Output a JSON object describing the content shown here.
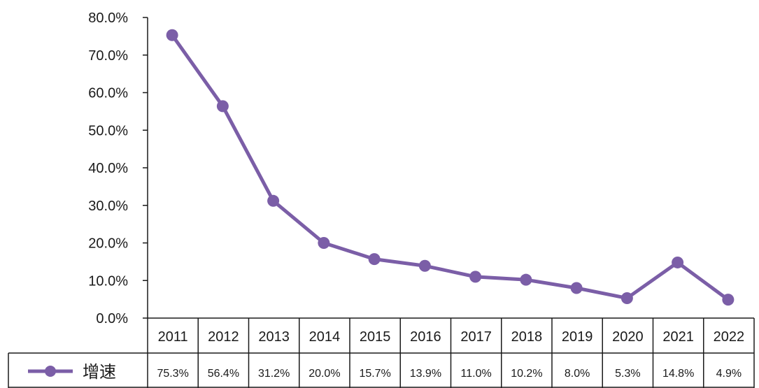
{
  "chart_data": {
    "type": "line",
    "title": "",
    "xlabel": "",
    "ylabel": "",
    "categories": [
      "2011",
      "2012",
      "2013",
      "2014",
      "2015",
      "2016",
      "2017",
      "2018",
      "2019",
      "2020",
      "2021",
      "2022"
    ],
    "series": [
      {
        "name": "增速",
        "values": [
          75.3,
          56.4,
          31.2,
          20.0,
          15.7,
          13.9,
          11.0,
          10.2,
          8.0,
          5.3,
          14.8,
          4.9
        ],
        "color": "#7B5EA7"
      }
    ],
    "value_labels": [
      "75.3%",
      "56.4%",
      "31.2%",
      "20.0%",
      "15.7%",
      "13.9%",
      "11.0%",
      "10.2%",
      "8.0%",
      "5.3%",
      "14.8%",
      "4.9%"
    ],
    "ylim": [
      0,
      80
    ],
    "yticks": [
      "0.0%",
      "10.0%",
      "20.0%",
      "30.0%",
      "40.0%",
      "50.0%",
      "60.0%",
      "70.0%",
      "80.0%"
    ],
    "data_table": true,
    "grid": false,
    "legend": "data-table-left"
  }
}
